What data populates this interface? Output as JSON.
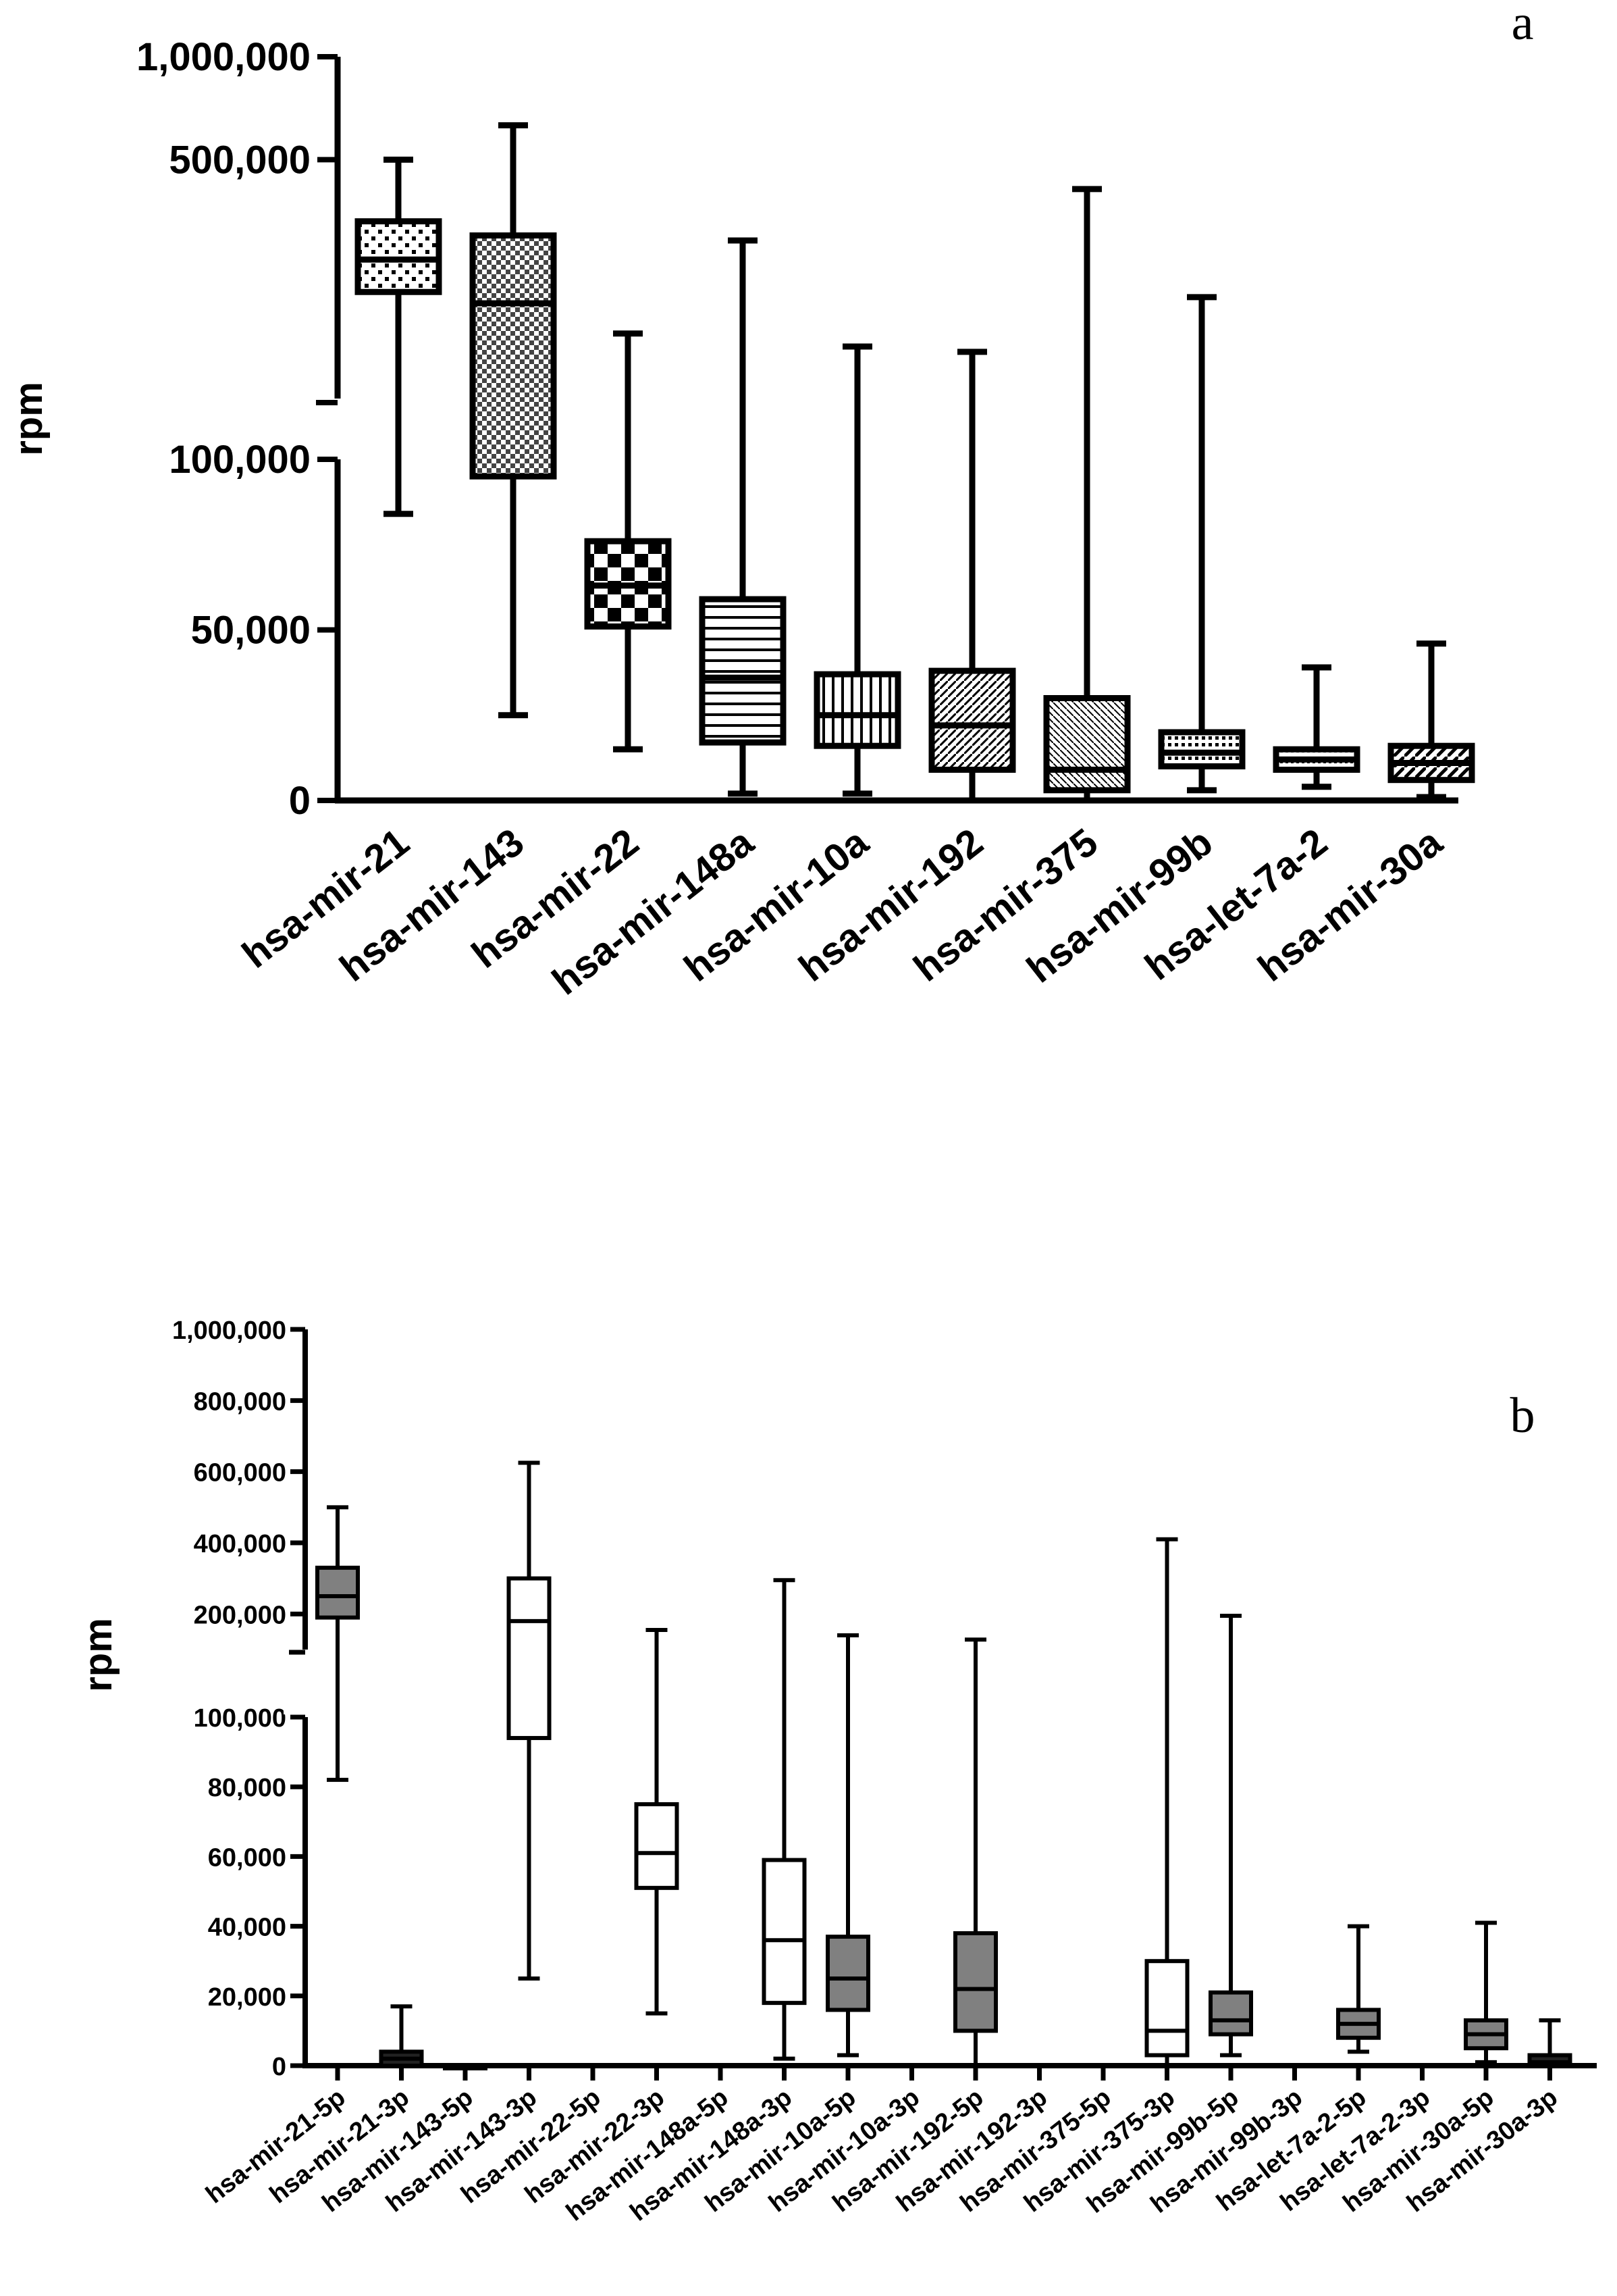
{
  "chart_data": [
    {
      "panel": "a",
      "type": "box",
      "ylabel": "rpm",
      "yaxis_break": true,
      "lower_segment_range": [
        0,
        100000
      ],
      "upper_segment_range": [
        100000,
        1000000
      ],
      "upper_segment_scale": "log",
      "ticks": [
        {
          "value": 0,
          "label": "0"
        },
        {
          "value": 50000,
          "label": "50,000"
        },
        {
          "value": 100000,
          "label": "100,000"
        },
        {
          "value": 500000,
          "label": "500,000"
        },
        {
          "value": 1000000,
          "label": "1,000,000"
        }
      ],
      "categories": [
        "hsa-mir-21",
        "hsa-mir-143",
        "hsa-mir-22",
        "hsa-mir-148a",
        "hsa-mir-10a",
        "hsa-mir-192",
        "hsa-mir-375",
        "hsa-mir-99b",
        "hsa-let-7a-2",
        "hsa-mir-30a"
      ],
      "boxes": [
        {
          "min": 84000,
          "q1": 205000,
          "median": 255000,
          "q3": 330000,
          "max": 500000
        },
        {
          "min": 25000,
          "q1": 95000,
          "median": 190000,
          "q3": 300000,
          "max": 630000
        },
        {
          "min": 15000,
          "q1": 51000,
          "median": 63000,
          "q3": 76000,
          "max": 155000
        },
        {
          "min": 2000,
          "q1": 17000,
          "median": 36000,
          "q3": 59000,
          "max": 290000
        },
        {
          "min": 2000,
          "q1": 16000,
          "median": 25000,
          "q3": 37000,
          "max": 142000
        },
        {
          "min": 0,
          "q1": 9000,
          "median": 22000,
          "q3": 38000,
          "max": 137000
        },
        {
          "min": 0,
          "q1": 3000,
          "median": 9000,
          "q3": 30000,
          "max": 410000
        },
        {
          "min": 3000,
          "q1": 10000,
          "median": 14000,
          "q3": 20000,
          "max": 198000
        },
        {
          "min": 4000,
          "q1": 9000,
          "median": 12000,
          "q3": 15000,
          "max": 39000
        },
        {
          "min": 1000,
          "q1": 6000,
          "median": 11000,
          "q3": 16000,
          "max": 46000
        }
      ]
    },
    {
      "panel": "b",
      "type": "box",
      "ylabel": "rpm",
      "yaxis_break": true,
      "lower_segment_range": [
        0,
        100000
      ],
      "upper_segment_range": [
        100000,
        1000000
      ],
      "ticks": [
        {
          "value": 0,
          "label": "0"
        },
        {
          "value": 20000,
          "label": "20,000"
        },
        {
          "value": 40000,
          "label": "40,000"
        },
        {
          "value": 60000,
          "label": "60,000"
        },
        {
          "value": 80000,
          "label": "80,000"
        },
        {
          "value": 100000,
          "label": "100,000"
        },
        {
          "value": 200000,
          "label": "200,000"
        },
        {
          "value": 400000,
          "label": "400,000"
        },
        {
          "value": 600000,
          "label": "600,000"
        },
        {
          "value": 800000,
          "label": "800,000"
        },
        {
          "value": 1000000,
          "label": "1,000,000"
        }
      ],
      "categories": [
        "hsa-mir-21-5p",
        "hsa-mir-21-3p",
        "hsa-mir-143-5p",
        "hsa-mir-143-3p",
        "hsa-mir-22-5p",
        "hsa-mir-22-3p",
        "hsa-mir-148a-5p",
        "hsa-mir-148a-3p",
        "hsa-mir-10a-5p",
        "hsa-mir-10a-3p",
        "hsa-mir-192-5p",
        "hsa-mir-192-3p",
        "hsa-mir-375-5p",
        "hsa-mir-375-3p",
        "hsa-mir-99b-5p",
        "hsa-mir-99b-3p",
        "hsa-let-7a-2-5p",
        "hsa-let-7a-2-3p",
        "hsa-mir-30a-5p",
        "hsa-mir-30a-3p"
      ],
      "boxes": [
        {
          "min": 82000,
          "q1": 190000,
          "median": 250000,
          "q3": 330000,
          "max": 500000,
          "fill": "gray"
        },
        {
          "min": 0,
          "q1": 0,
          "median": 2000,
          "q3": 4000,
          "max": 17000,
          "fill": "dark"
        },
        {
          "min": 0,
          "q1": 0,
          "median": 0,
          "q3": 0,
          "max": 0,
          "fill": "none"
        },
        {
          "min": 25000,
          "q1": 94000,
          "median": 180000,
          "q3": 300000,
          "max": 625000,
          "fill": "white"
        },
        null,
        {
          "min": 15000,
          "q1": 51000,
          "median": 61000,
          "q3": 75000,
          "max": 155000,
          "fill": "white"
        },
        null,
        {
          "min": 2000,
          "q1": 18000,
          "median": 36000,
          "q3": 59000,
          "max": 295000,
          "fill": "white"
        },
        {
          "min": 3000,
          "q1": 16000,
          "median": 25000,
          "q3": 37000,
          "max": 140000,
          "fill": "gray"
        },
        null,
        {
          "min": 0,
          "q1": 10000,
          "median": 22000,
          "q3": 38000,
          "max": 128000,
          "fill": "gray"
        },
        null,
        null,
        {
          "min": 0,
          "q1": 3000,
          "median": 10000,
          "q3": 30000,
          "max": 410000,
          "fill": "white"
        },
        {
          "min": 3000,
          "q1": 9000,
          "median": 13000,
          "q3": 21000,
          "max": 195000,
          "fill": "gray"
        },
        null,
        {
          "min": 4000,
          "q1": 8000,
          "median": 12000,
          "q3": 16000,
          "max": 40000,
          "fill": "gray"
        },
        null,
        {
          "min": 1000,
          "q1": 5000,
          "median": 9000,
          "q3": 13000,
          "max": 41000,
          "fill": "gray"
        },
        {
          "min": 0,
          "q1": 0,
          "median": 1000,
          "q3": 3000,
          "max": 13000,
          "fill": "dark"
        }
      ]
    }
  ],
  "colors": {
    "gray": "#808080",
    "dark": "#222222",
    "white": "#ffffff",
    "black": "#000000"
  }
}
